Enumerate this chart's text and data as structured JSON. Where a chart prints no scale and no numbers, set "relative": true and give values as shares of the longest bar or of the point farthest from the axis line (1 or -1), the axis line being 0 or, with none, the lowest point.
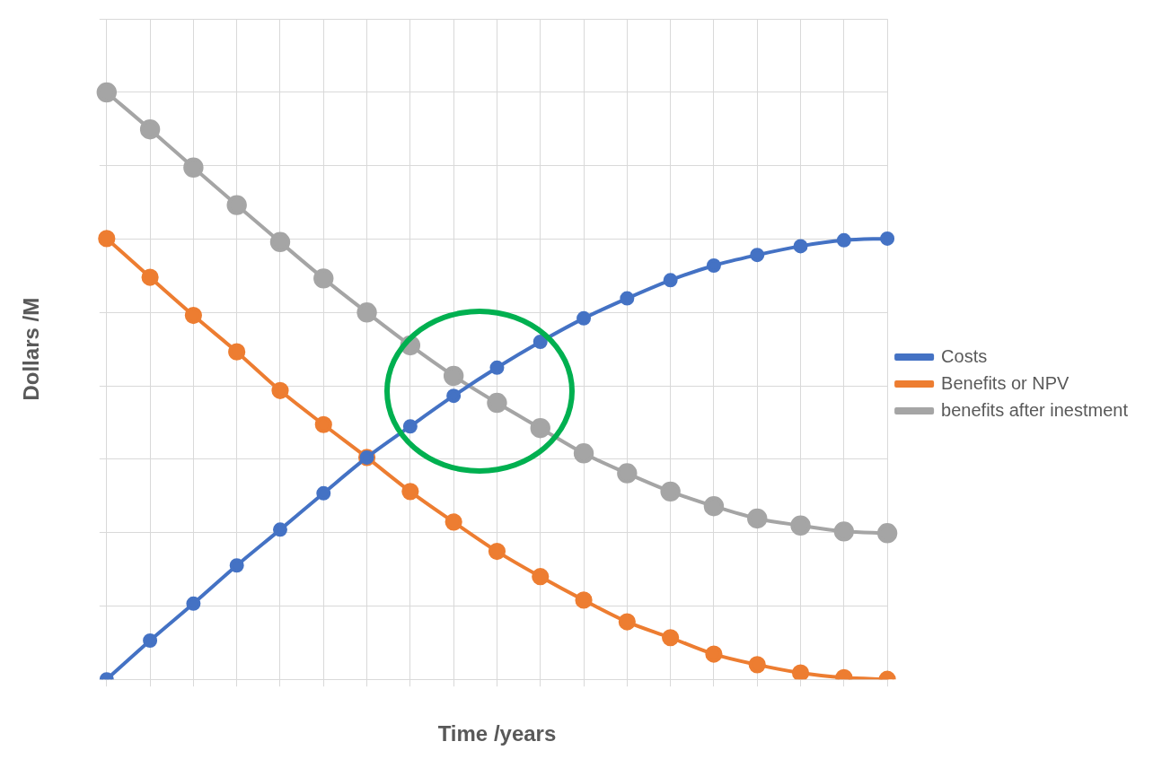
{
  "chart_data": {
    "type": "line",
    "xlabel": "Time /years",
    "ylabel": "Dollars /M",
    "relative": true,
    "grid": true,
    "legend": "right",
    "marker": "circle",
    "line_style": "solid",
    "categories": [
      null,
      null,
      null,
      null,
      null,
      null,
      null,
      null,
      null,
      null,
      null,
      null,
      null,
      null,
      null,
      null,
      null,
      null,
      null
    ],
    "series": [
      {
        "name": "Costs",
        "color": "#4472c4",
        "values": [
          0,
          0.066,
          0.129,
          0.194,
          0.255,
          0.317,
          0.378,
          0.431,
          0.483,
          0.531,
          0.575,
          0.615,
          0.649,
          0.68,
          0.705,
          0.723,
          0.738,
          0.748,
          0.751
        ]
      },
      {
        "name": "Benefits or NPV",
        "color": "#ed7d31",
        "values": [
          0.751,
          0.685,
          0.62,
          0.558,
          0.492,
          0.434,
          0.378,
          0.32,
          0.268,
          0.218,
          0.175,
          0.135,
          0.098,
          0.071,
          0.043,
          0.025,
          0.011,
          0.003,
          0
        ]
      },
      {
        "name": "benefits after inestment",
        "color": "#a5a5a5",
        "values": [
          1,
          0.937,
          0.872,
          0.808,
          0.745,
          0.683,
          0.625,
          0.569,
          0.517,
          0.471,
          0.428,
          0.385,
          0.351,
          0.32,
          0.295,
          0.274,
          0.262,
          0.252,
          0.249
        ]
      }
    ]
  }
}
